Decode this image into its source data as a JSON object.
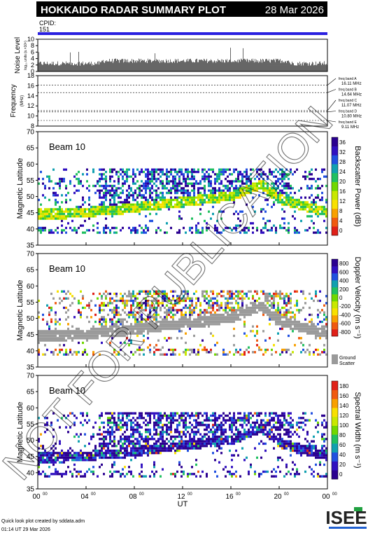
{
  "header": {
    "title": "HOKKAIDO RADAR SUMMARY PLOT",
    "date": "28 Mar 2026"
  },
  "cpid": {
    "label": "CPID:",
    "value": "151"
  },
  "noise_panel": {
    "ylabel": "Noise Level",
    "ylabel_sub": "log₁₀ units (s.×10⁶)",
    "yticks": [
      "0",
      "2",
      "4",
      "6",
      "8",
      "10"
    ],
    "ylim": [
      0,
      10
    ]
  },
  "freq_panel": {
    "ylabel": "Frequency",
    "ylabel_sub": "(MHz)",
    "yticks": [
      "8",
      "10",
      "12",
      "14",
      "16",
      "18"
    ],
    "ylim": [
      8,
      18
    ],
    "bands": [
      {
        "label": "freq band A",
        "mhz": "16.11 MHz"
      },
      {
        "label": "freq band B",
        "mhz": "14.64 MHz"
      },
      {
        "label": "freq band C",
        "mhz": "11.07 MHz"
      },
      {
        "label": "freq band D",
        "mhz": "10.80 MHz"
      },
      {
        "label": "freq band E",
        "mhz": "9.11 MHz"
      }
    ]
  },
  "beam_panels": [
    {
      "beam": "Beam 10",
      "ylabel": "Magnetic Latitude",
      "yticks": [
        "35",
        "40",
        "45",
        "50",
        "55",
        "60",
        "65",
        "70"
      ],
      "colorbar_label": "Backscatter Power (dB)",
      "colorbar_ticks": [
        "0",
        "4",
        "8",
        "12",
        "16",
        "20",
        "24",
        "28",
        "32",
        "36"
      ],
      "colors": [
        "#e02018",
        "#f05a10",
        "#f8a000",
        "#f8e000",
        "#c8e800",
        "#70d800",
        "#20c060",
        "#10a0b0",
        "#2050e0",
        "#3010c0",
        "#2a0090"
      ]
    },
    {
      "beam": "Beam 10",
      "ylabel": "Magnetic Latitude",
      "yticks": [
        "35",
        "40",
        "45",
        "50",
        "55",
        "60",
        "65",
        "70"
      ],
      "colorbar_label": "Doppler Velocity (m s⁻¹)",
      "colorbar_ticks": [
        "-800",
        "-600",
        "-400",
        "-200",
        "0",
        "200",
        "400",
        "600",
        "800"
      ],
      "colors": [
        "#e02018",
        "#f05a10",
        "#f8a000",
        "#f8e000",
        "#c8e800",
        "#70d800",
        "#20c060",
        "#10a0b0",
        "#2050e0",
        "#3010c0",
        "#2a0090"
      ],
      "ground_scatter": "Ground Scatter"
    },
    {
      "beam": "Beam 10",
      "ylabel": "Magnetic Latitude",
      "yticks": [
        "35",
        "40",
        "45",
        "50",
        "55",
        "60",
        "65",
        "70"
      ],
      "colorbar_label": "Spectral Width (m s⁻¹)",
      "colorbar_ticks": [
        "0",
        "20",
        "40",
        "60",
        "80",
        "100",
        "120",
        "140",
        "160",
        "180"
      ],
      "colors": [
        "#2a0090",
        "#3010c0",
        "#2050e0",
        "#10a0b0",
        "#20c060",
        "#70d800",
        "#c8e800",
        "#f8e000",
        "#f8a000",
        "#f05a10",
        "#e02018"
      ]
    }
  ],
  "xaxis": {
    "label": "UT",
    "ticks": [
      "00",
      "04",
      "08",
      "12",
      "16",
      "20",
      "00"
    ],
    "tick_sup": "00"
  },
  "watermark": "NOT FOR PUBLICATION",
  "footer": {
    "line1": "Quick look plot created by sddata.adm",
    "line2": "01:14 UT 29 Mar 2026",
    "logo": "ISEE"
  },
  "chart_data": [
    {
      "type": "bar",
      "title": "Noise Level",
      "x": "UT hours 0-24",
      "ylim": [
        0,
        10
      ],
      "approx_level": 1.8
    },
    {
      "type": "line",
      "title": "Frequency",
      "ylim": [
        8,
        18
      ],
      "series": [
        {
          "name": "freq band A",
          "values": [
            16.11
          ]
        },
        {
          "name": "freq band B",
          "values": [
            14.64
          ]
        },
        {
          "name": "freq band C",
          "values": [
            11.07
          ]
        },
        {
          "name": "freq band D",
          "values": [
            10.8
          ]
        },
        {
          "name": "freq band E",
          "values": [
            9.11
          ]
        }
      ]
    },
    {
      "type": "heatmap",
      "title": "Backscatter Power (dB)",
      "xlim": [
        0,
        24
      ],
      "ylim": [
        35,
        70
      ],
      "zlim": [
        0,
        36
      ]
    },
    {
      "type": "heatmap",
      "title": "Doppler Velocity (m s⁻¹)",
      "xlim": [
        0,
        24
      ],
      "ylim": [
        35,
        70
      ],
      "zlim": [
        -800,
        800
      ]
    },
    {
      "type": "heatmap",
      "title": "Spectral Width (m s⁻¹)",
      "xlim": [
        0,
        24
      ],
      "ylim": [
        35,
        70
      ],
      "zlim": [
        0,
        180
      ]
    }
  ]
}
